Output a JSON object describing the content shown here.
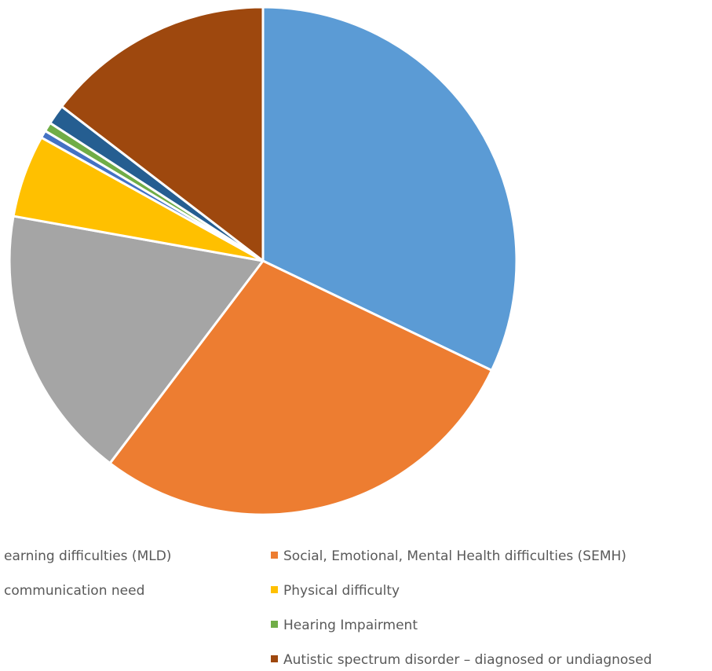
{
  "chart_data": {
    "type": "pie",
    "title": "",
    "start_angle_deg": 0,
    "direction": "clockwise",
    "slice_border_color": "#ffffff",
    "legend_position": "bottom",
    "slices": [
      {
        "label": "Moderate learning difficulties (MLD)",
        "value": 33.0,
        "color": "#5B9BD5"
      },
      {
        "label": "Social, Emotional, Mental Health difficulties (SEMH)",
        "value": 29.0,
        "color": "#ED7D31"
      },
      {
        "label": "Speech and communication need",
        "value": 18.0,
        "color": "#A5A5A5"
      },
      {
        "label": "Physical difficulty",
        "value": 5.4,
        "color": "#FFC000"
      },
      {
        "label": "",
        "value": 0.5,
        "color": "#4472C4"
      },
      {
        "label": "Hearing Impairment",
        "value": 0.6,
        "color": "#70AD47"
      },
      {
        "label": "",
        "value": 1.3,
        "color": "#255E91"
      },
      {
        "label": "Autistic spectrum disorder – diagnosed or undiagnosed",
        "value": 15.0,
        "color": "#9E480E"
      }
    ],
    "legend_items": [
      {
        "text": "earning difficulties (MLD)",
        "color": "#5B9BD5"
      },
      {
        "text": "Social, Emotional, Mental Health difficulties (SEMH)",
        "color": "#ED7D31"
      },
      {
        "text": "communication need",
        "color": "#A5A5A5"
      },
      {
        "text": "Physical difficulty",
        "color": "#FFC000"
      },
      {
        "text": "Hearing Impairment",
        "color": "#70AD47"
      },
      {
        "text": "Autistic spectrum disorder – diagnosed or undiagnosed",
        "color": "#9E480E"
      }
    ]
  }
}
